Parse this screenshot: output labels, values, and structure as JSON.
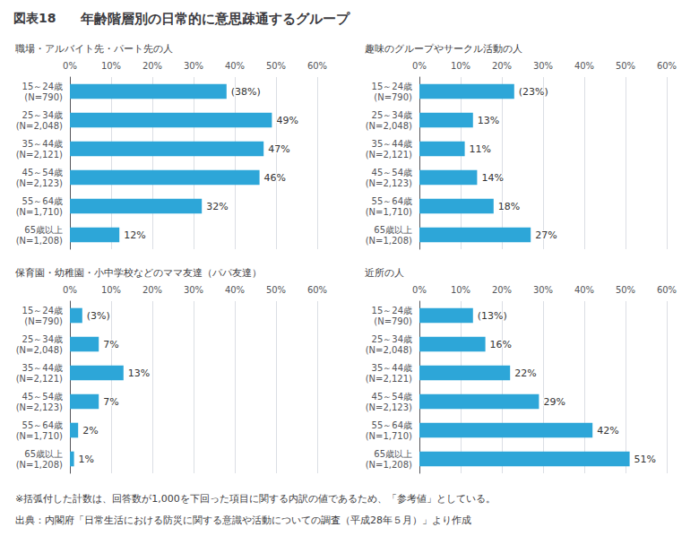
{
  "title": "年齢階層別の日常的に意思疎通するグループ",
  "annotations": [
    "図表18",
    "※括弧付した計数は、回答数が1,000を下回った項目に関する内訳の値であるため、「参考値」としている。",
    "出典：内閣府「日常生活における防災に関する意識や活動についての調査（平成28年５月）」より作成"
  ],
  "chart_data": [
    {
      "type": "bar",
      "orientation": "horizontal",
      "title": "職場・アルバイト先・パート先の人",
      "categories": [
        "15～24歳\n(N=790)",
        "25～34歳\n(N=2,048)",
        "35～44歳\n(N=2,121)",
        "45～54歳\n(N=2,123)",
        "55～64歳\n(N=1,710)",
        "65歳以上\n(N=1,208)"
      ],
      "values": [
        38,
        49,
        47,
        46,
        32,
        12
      ],
      "value_labels": [
        "(38%)",
        "49%",
        "47%",
        "46%",
        "32%",
        "12%"
      ],
      "data_labels": true,
      "color": "#2da6d8",
      "grid": true,
      "xlim": [
        0,
        60
      ],
      "xticks": [
        {
          "value": 0,
          "label": "0%"
        },
        {
          "value": 10,
          "label": "10%"
        },
        {
          "value": 20,
          "label": "20%"
        },
        {
          "value": 30,
          "label": "30%"
        },
        {
          "value": 40,
          "label": "40%"
        },
        {
          "value": 50,
          "label": "50%"
        },
        {
          "value": 60,
          "label": "60%"
        }
      ]
    },
    {
      "type": "bar",
      "orientation": "horizontal",
      "title": "趣味のグループやサークル活動の人",
      "categories": [
        "15～24歳\n(N=790)",
        "25～34歳\n(N=2,048)",
        "35～44歳\n(N=2,121)",
        "45～54歳\n(N=2,123)",
        "55～64歳\n(N=1,710)",
        "65歳以上\n(N=1,208)"
      ],
      "values": [
        23,
        13,
        11,
        14,
        18,
        27
      ],
      "value_labels": [
        "(23%)",
        "13%",
        "11%",
        "14%",
        "18%",
        "27%"
      ],
      "data_labels": true,
      "color": "#2da6d8",
      "grid": true,
      "xlim": [
        0,
        60
      ],
      "xticks": [
        {
          "value": 0,
          "label": "0%"
        },
        {
          "value": 10,
          "label": "10%"
        },
        {
          "value": 20,
          "label": "20%"
        },
        {
          "value": 30,
          "label": "30%"
        },
        {
          "value": 40,
          "label": "40%"
        },
        {
          "value": 50,
          "label": "50%"
        },
        {
          "value": 60,
          "label": "60%"
        }
      ]
    },
    {
      "type": "bar",
      "orientation": "horizontal",
      "title": "保育園・幼稚園・小中学校などのママ友達（パパ友達）",
      "categories": [
        "15～24歳\n(N=790)",
        "25～34歳\n(N=2,048)",
        "35～44歳\n(N=2,121)",
        "45～54歳\n(N=2,123)",
        "55～64歳\n(N=1,710)",
        "65歳以上\n(N=1,208)"
      ],
      "values": [
        3,
        7,
        13,
        7,
        2,
        1
      ],
      "value_labels": [
        "(3%)",
        "7%",
        "13%",
        "7%",
        "2%",
        "1%"
      ],
      "data_labels": true,
      "color": "#2da6d8",
      "grid": true,
      "xlim": [
        0,
        60
      ],
      "xticks": [
        {
          "value": 0,
          "label": "0%"
        },
        {
          "value": 10,
          "label": "10%"
        },
        {
          "value": 20,
          "label": "20%"
        },
        {
          "value": 30,
          "label": "30%"
        },
        {
          "value": 40,
          "label": "40%"
        },
        {
          "value": 50,
          "label": "50%"
        },
        {
          "value": 60,
          "label": "60%"
        }
      ]
    },
    {
      "type": "bar",
      "orientation": "horizontal",
      "title": "近所の人",
      "categories": [
        "15～24歳\n(N=790)",
        "25～34歳\n(N=2,048)",
        "35～44歳\n(N=2,121)",
        "45～54歳\n(N=2,123)",
        "55～64歳\n(N=1,710)",
        "65歳以上\n(N=1,208)"
      ],
      "values": [
        13,
        16,
        22,
        29,
        42,
        51
      ],
      "value_labels": [
        "(13%)",
        "16%",
        "22%",
        "29%",
        "42%",
        "51%"
      ],
      "data_labels": true,
      "color": "#2da6d8",
      "grid": true,
      "xlim": [
        0,
        60
      ],
      "xticks": [
        {
          "value": 0,
          "label": "0%"
        },
        {
          "value": 10,
          "label": "10%"
        },
        {
          "value": 20,
          "label": "20%"
        },
        {
          "value": 30,
          "label": "30%"
        },
        {
          "value": 40,
          "label": "40%"
        },
        {
          "value": 50,
          "label": "50%"
        },
        {
          "value": 60,
          "label": "60%"
        }
      ]
    }
  ]
}
